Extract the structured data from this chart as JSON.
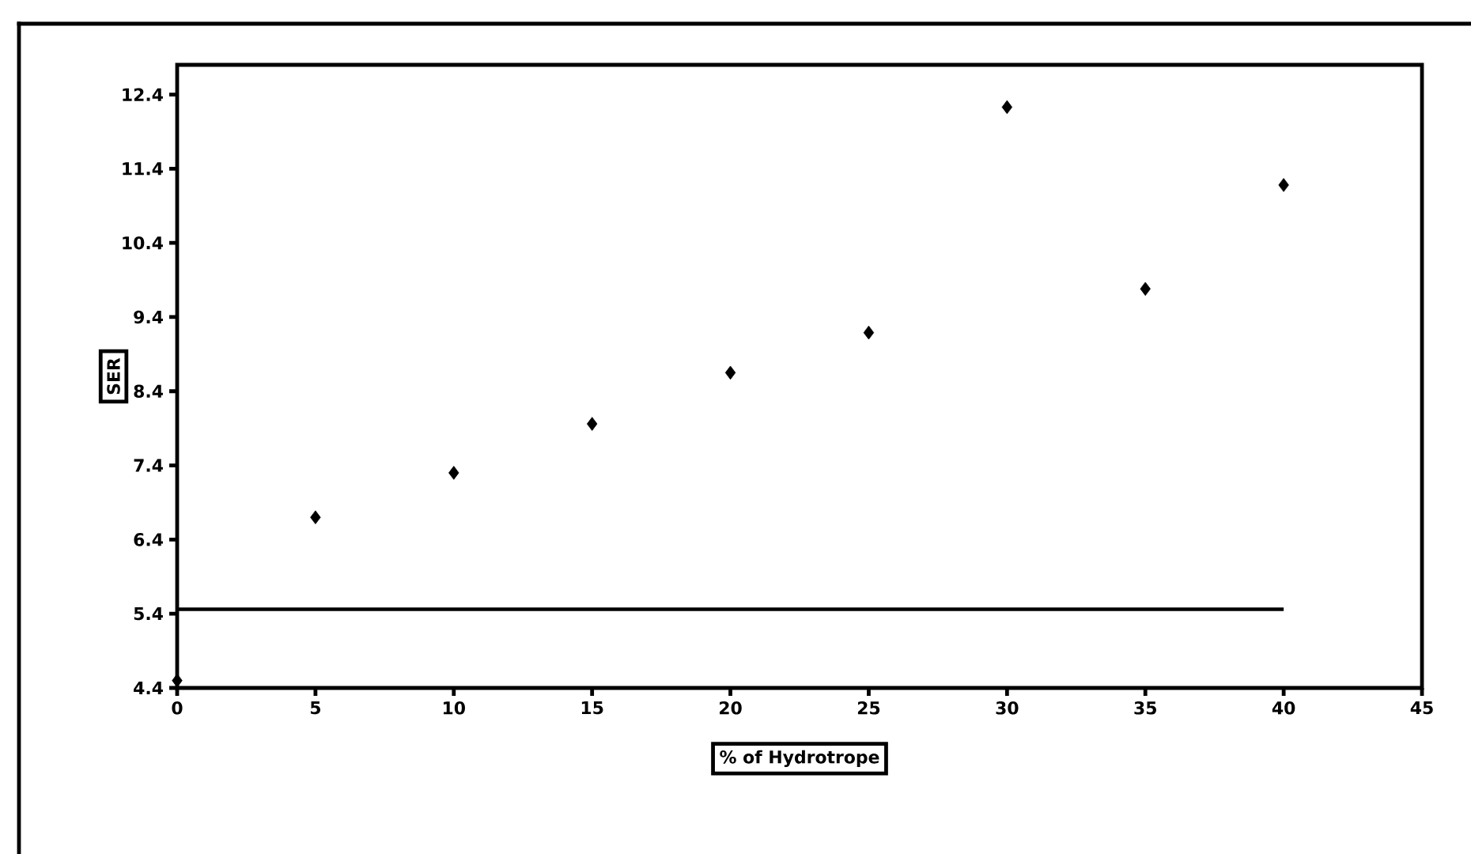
{
  "chart_data": {
    "type": "scatter",
    "xlabel": "% of Hydrotrope",
    "ylabel": "SER",
    "x": [
      0,
      5,
      10,
      15,
      20,
      25,
      30,
      35,
      40
    ],
    "series": [
      {
        "values": [
          4.5,
          6.7,
          7.3,
          7.96,
          8.65,
          9.19,
          12.23,
          9.78,
          11.18
        ],
        "color": "#000000"
      },
      {
        "type": "line",
        "x": [
          0,
          40
        ],
        "values": [
          5.46,
          5.46
        ],
        "color": "#000000",
        "marker": "none",
        "line_style": "solid"
      }
    ],
    "marker": "diamond",
    "xlim": [
      0,
      45
    ],
    "ylim": [
      4.4,
      12.8
    ],
    "xticks": [
      0,
      5,
      10,
      15,
      20,
      25,
      30,
      35,
      40,
      45
    ],
    "yticks": [
      4.4,
      5.4,
      6.4,
      7.4,
      8.4,
      9.4,
      10.4,
      11.4,
      12.4
    ],
    "grid": false
  }
}
